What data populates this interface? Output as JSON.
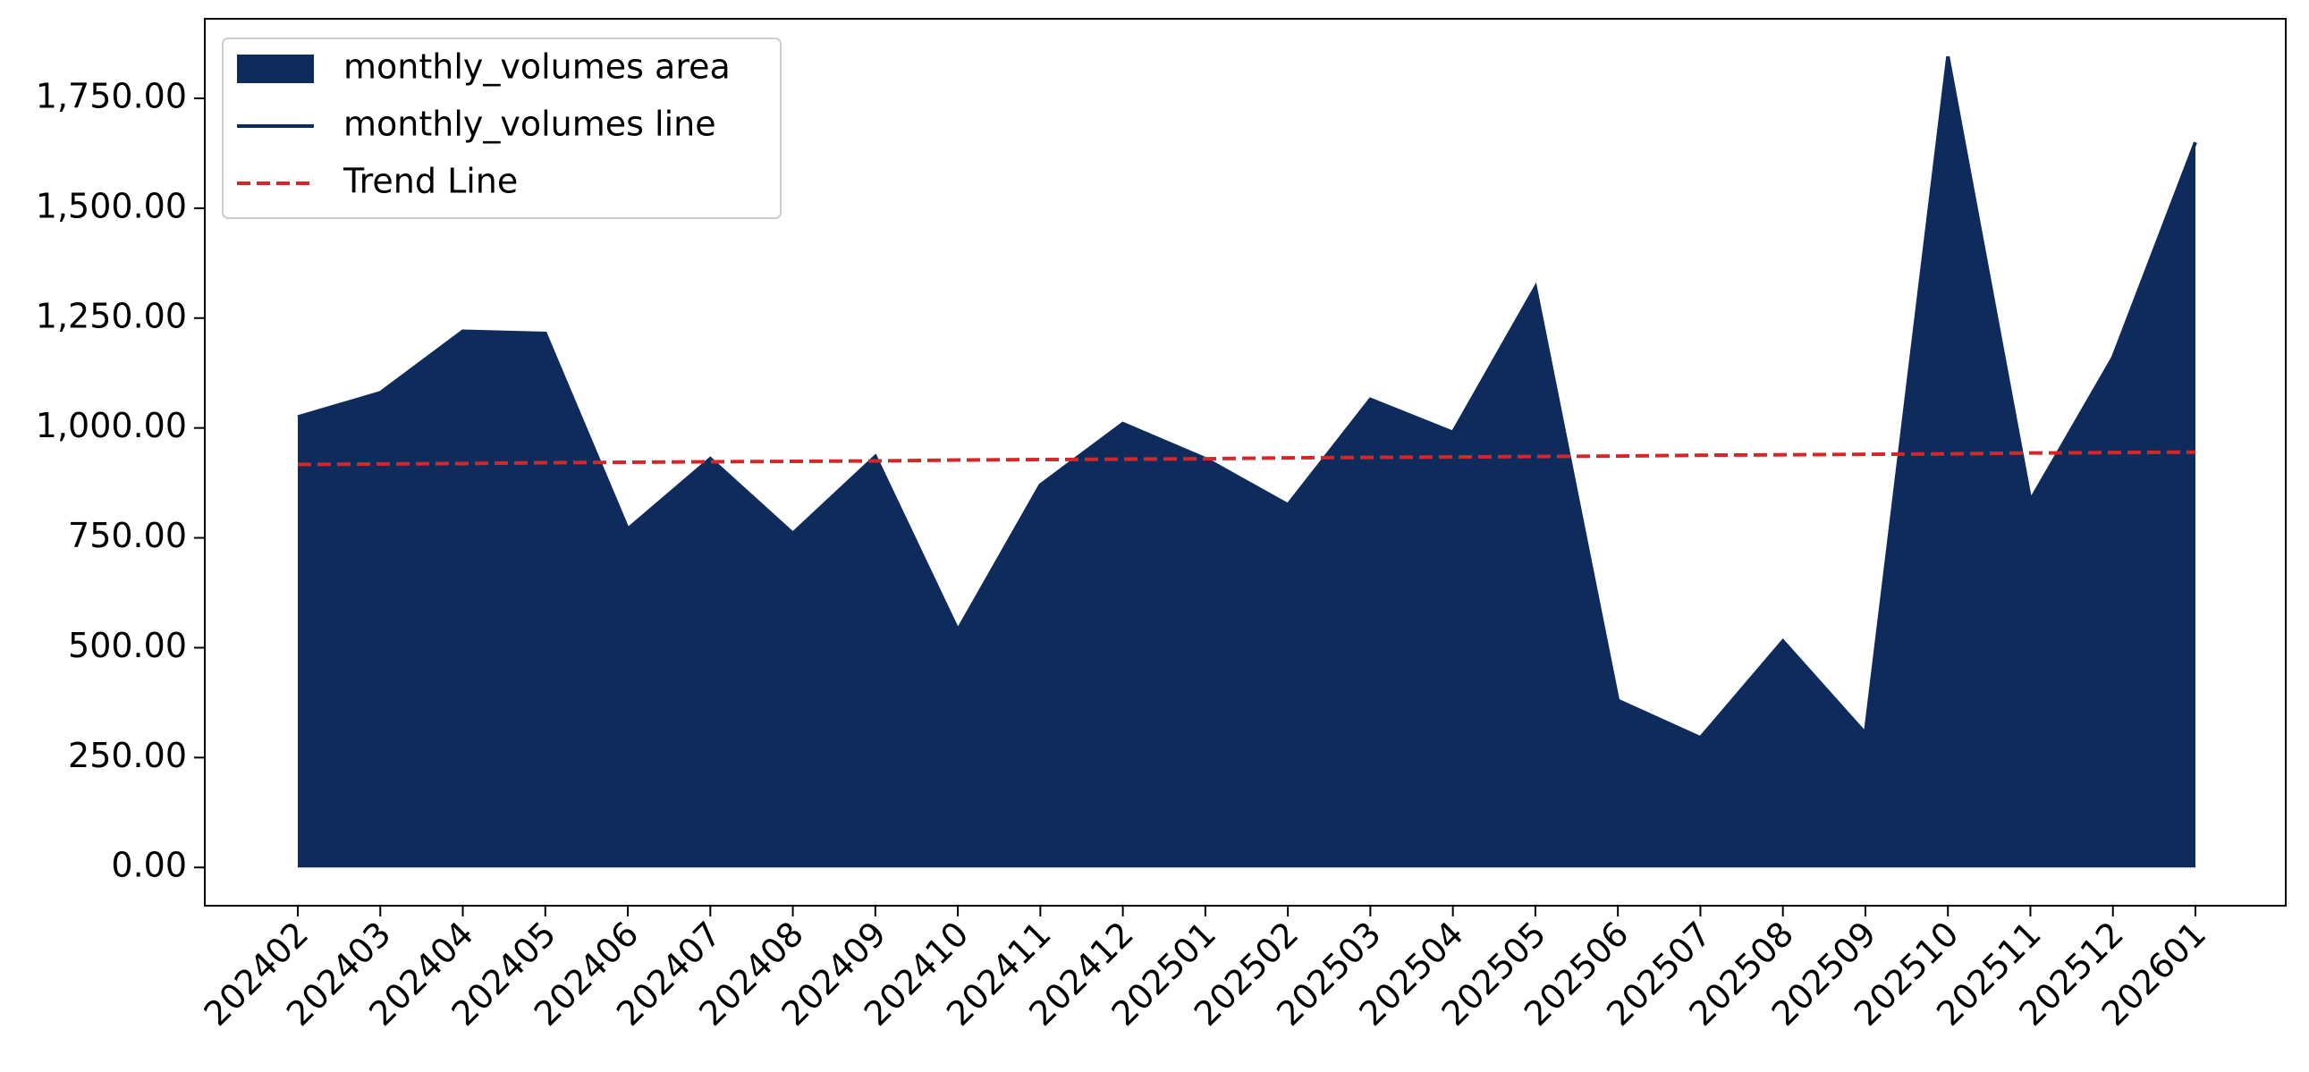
{
  "chart_data": {
    "type": "area",
    "categories": [
      "202402",
      "202403",
      "202404",
      "202405",
      "202406",
      "202407",
      "202408",
      "202409",
      "202410",
      "202411",
      "202412",
      "202501",
      "202502",
      "202503",
      "202504",
      "202505",
      "202506",
      "202507",
      "202508",
      "202509",
      "202510",
      "202511",
      "202512",
      "202601"
    ],
    "series": [
      {
        "name": "monthly_volumes area",
        "color": "#0e2b5c",
        "style": "area",
        "values": [
          1025,
          1080,
          1220,
          1215,
          770,
          930,
          760,
          935,
          540,
          870,
          1010,
          930,
          825,
          1065,
          990,
          1320,
          380,
          295,
          515,
          305,
          1845,
          835,
          1160,
          1650
        ]
      },
      {
        "name": "monthly_volumes line",
        "color": "#0e2b5c",
        "style": "solid",
        "values": [
          1025,
          1080,
          1220,
          1215,
          770,
          930,
          760,
          935,
          540,
          870,
          1010,
          930,
          825,
          1065,
          990,
          1320,
          380,
          295,
          515,
          305,
          1845,
          835,
          1160,
          1650
        ]
      },
      {
        "name": "Trend Line",
        "color": "#d62728",
        "style": "dashed",
        "values": [
          917,
          918,
          919,
          921,
          922,
          923,
          924,
          925,
          927,
          928,
          929,
          930,
          932,
          933,
          934,
          935,
          936,
          938,
          939,
          940,
          941,
          943,
          944,
          945
        ]
      }
    ],
    "ylim": [
      -87,
      1931
    ],
    "yticks": [
      {
        "value": 0,
        "label": "0.00"
      },
      {
        "value": 250,
        "label": "250.00"
      },
      {
        "value": 500,
        "label": "500.00"
      },
      {
        "value": 750,
        "label": "750.00"
      },
      {
        "value": 1000,
        "label": "1,000.00"
      },
      {
        "value": 1250,
        "label": "1,250.00"
      },
      {
        "value": 1500,
        "label": "1,500.00"
      },
      {
        "value": 1750,
        "label": "1,750.00"
      }
    ],
    "legend": "upper left"
  }
}
